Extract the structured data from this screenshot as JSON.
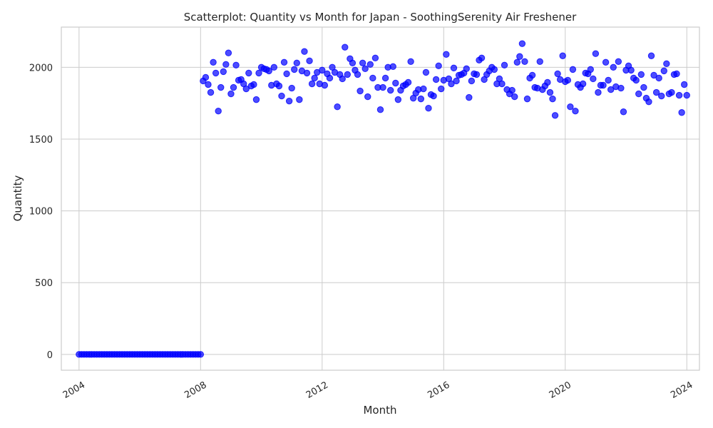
{
  "chart_data": {
    "type": "scatter",
    "title": "Scatterplot: Quantity vs Month for Japan - SoothingSerenity Air Freshener",
    "xlabel": "Month",
    "ylabel": "Quantity",
    "x_range": [
      "2003-06",
      "2024-06"
    ],
    "ylim": [
      -110,
      2280
    ],
    "x_ticks": [
      "2004",
      "2008",
      "2012",
      "2016",
      "2020",
      "2024"
    ],
    "y_ticks": [
      "0",
      "500",
      "1000",
      "1500",
      "2000"
    ],
    "grid": true,
    "marker_color": "#0000ff",
    "series": [
      {
        "start_month": "2004-01",
        "values": [
          0,
          0,
          0,
          0,
          0,
          0,
          0,
          0,
          0,
          0,
          0,
          0,
          0,
          0,
          0,
          0,
          0,
          0,
          0,
          0,
          0,
          0,
          0,
          0,
          0,
          0,
          0,
          0,
          0,
          0,
          0,
          0,
          0,
          0,
          0,
          0,
          0,
          0,
          0,
          0,
          0,
          0,
          0,
          0,
          0,
          0,
          0,
          0,
          0,
          1905,
          1930,
          1880,
          1825,
          2035,
          1960,
          1695,
          1860,
          1970,
          2020,
          2100,
          1815,
          1860,
          2015,
          1910,
          1915,
          1885,
          1850,
          1960,
          1870,
          1880,
          1775,
          1960,
          2000,
          1990,
          1985,
          1975,
          1875,
          2000,
          1885,
          1870,
          1800,
          2035,
          1955,
          1765,
          1855,
          1985,
          2030,
          1775,
          1975,
          2110,
          1960,
          2045,
          1885,
          1925,
          1965,
          1885,
          1980,
          1875,
          1955,
          1925,
          2000,
          1965,
          1725,
          1950,
          1920,
          2140,
          1950,
          2060,
          2030,
          1980,
          1950,
          1835,
          2030,
          1990,
          1795,
          2020,
          1925,
          2065,
          1860,
          1705,
          1860,
          1925,
          2000,
          1840,
          2005,
          1890,
          1775,
          1840,
          1870,
          1880,
          1895,
          2040,
          1785,
          1820,
          1845,
          1780,
          1850,
          1965,
          1715,
          1810,
          1800,
          1915,
          2010,
          1850,
          1910,
          2090,
          1920,
          1885,
          1995,
          1905,
          1945,
          1950,
          1960,
          1990,
          1790,
          1905,
          1955,
          1950,
          2050,
          2065,
          1915,
          1950,
          1975,
          2000,
          1985,
          1885,
          1920,
          1885,
          2015,
          1845,
          1815,
          1840,
          1795,
          2035,
          2075,
          2165,
          2040,
          1780,
          1925,
          1945,
          1860,
          1855,
          2040,
          1845,
          1870,
          1895,
          1825,
          1780,
          1665,
          1955,
          1915,
          2080,
          1900,
          1910,
          1725,
          1985,
          1695,
          1880,
          1860,
          1885,
          1960,
          1955,
          1985,
          1920,
          2095,
          1825,
          1875,
          1875,
          2035,
          1910,
          1845,
          2000,
          1865,
          2040,
          1855,
          1690,
          1980,
          2010,
          1980,
          1925,
          1910,
          1815,
          1950,
          1860,
          1785,
          1760,
          2080,
          1945,
          1825,
          1925,
          1800,
          1975,
          2025,
          1815,
          1825,
          1950,
          1955,
          1805,
          1685,
          1880,
          1805
        ]
      }
    ]
  }
}
